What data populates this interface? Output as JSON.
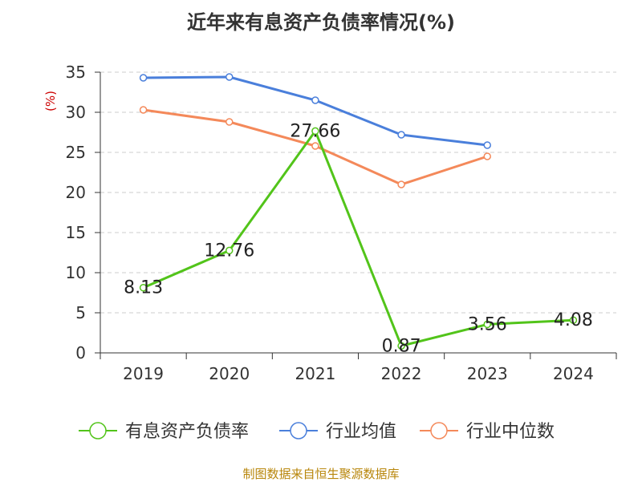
{
  "chart_data": {
    "type": "line",
    "title": "近年来有息资产负债率情况(%)",
    "ylabel": "(%)",
    "xlabel": "",
    "categories": [
      "2019",
      "2020",
      "2021",
      "2022",
      "2023",
      "2024"
    ],
    "ylim": [
      0,
      35
    ],
    "yticks": [
      0,
      5,
      10,
      15,
      20,
      25,
      30,
      35
    ],
    "grid": "horizontal-dashed",
    "legend_position": "bottom",
    "series": [
      {
        "name": "有息资产负债率",
        "color": "#52c41a",
        "values": [
          8.13,
          12.76,
          27.66,
          0.87,
          3.56,
          4.08
        ],
        "labels": [
          "8.13",
          "12.76",
          "27.66",
          "0.87",
          "3.56",
          "4.08"
        ]
      },
      {
        "name": "行业均值",
        "color": "#4a7fdb",
        "values": [
          34.3,
          34.4,
          31.5,
          27.2,
          25.9,
          null
        ]
      },
      {
        "name": "行业中位数",
        "color": "#f4895a",
        "values": [
          30.3,
          28.8,
          25.8,
          21.0,
          24.5,
          null
        ]
      }
    ]
  },
  "source": "制图数据来自恒生聚源数据库"
}
